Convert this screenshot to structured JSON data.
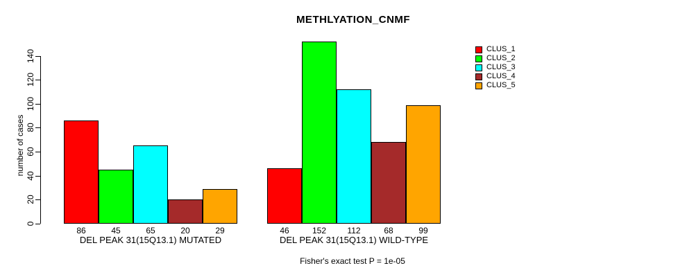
{
  "chart_data": {
    "type": "bar",
    "title": "METHLYATION_CNMF",
    "ylabel": "number of cases",
    "xlabel": "",
    "yticks": [
      0,
      20,
      40,
      60,
      80,
      100,
      120,
      140
    ],
    "ylim": [
      0,
      152
    ],
    "grid": false,
    "legend_position": "right",
    "legend": [
      {
        "label": "CLUS_1",
        "color": "#FF0000"
      },
      {
        "label": "CLUS_2",
        "color": "#00FF00"
      },
      {
        "label": "CLUS_3",
        "color": "#00FFFF"
      },
      {
        "label": "CLUS_4",
        "color": "#A52A2A"
      },
      {
        "label": "CLUS_5",
        "color": "#FFA500"
      }
    ],
    "groups": [
      {
        "label": "DEL PEAK 31(15Q13.1) MUTATED",
        "values": [
          86,
          45,
          65,
          20,
          29
        ]
      },
      {
        "label": "DEL PEAK 31(15Q13.1) WILD-TYPE",
        "values": [
          46,
          152,
          112,
          68,
          99
        ]
      }
    ],
    "annotation": "Fisher's exact test P = 1e-05"
  }
}
